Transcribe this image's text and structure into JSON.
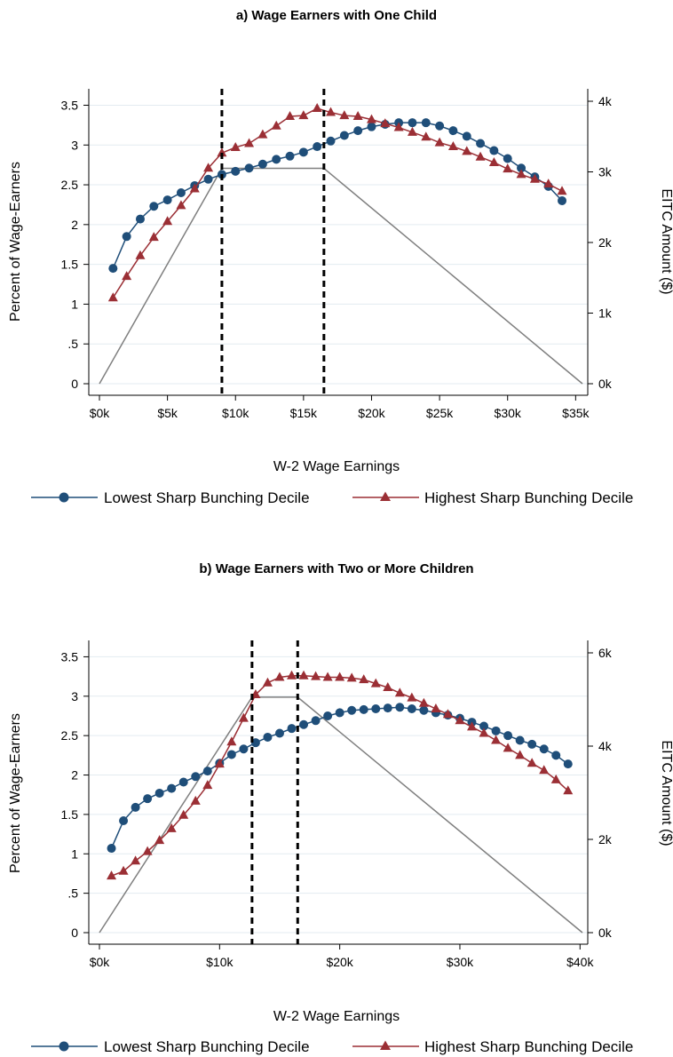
{
  "colors": {
    "low": "#1f4e79",
    "high": "#9b2f35",
    "eitc": "#7f7f7f",
    "grid": "#e3ebf0",
    "vline": "#000000"
  },
  "chart_data": [
    {
      "type": "line",
      "title": "a) Wage Earners with One Child",
      "xlabel": "W-2 Wage Earnings",
      "ylabel": "Percent of Wage-Earners",
      "y2label": "EITC Amount ($)",
      "xlim": [
        0,
        35500
      ],
      "ylim": [
        0,
        3.55
      ],
      "y2lim": [
        0,
        4000
      ],
      "xticks": [
        0,
        5000,
        10000,
        15000,
        20000,
        25000,
        30000,
        35000
      ],
      "xtick_labels": [
        "$0k",
        "$5k",
        "$10k",
        "$15k",
        "$20k",
        "$25k",
        "$30k",
        "$35k"
      ],
      "yticks": [
        0,
        0.5,
        1,
        1.5,
        2,
        2.5,
        3,
        3.5
      ],
      "ytick_labels": [
        "0",
        ".5",
        "1",
        "1.5",
        "2",
        "2.5",
        "3",
        "3.5"
      ],
      "y2ticks": [
        0,
        1000,
        2000,
        3000,
        4000
      ],
      "y2tick_labels": [
        "0k",
        "1k",
        "2k",
        "3k",
        "4k"
      ],
      "grid": true,
      "legend_position": "bottom",
      "vlines": [
        9000,
        16500
      ],
      "x": [
        1000,
        2000,
        3000,
        4000,
        5000,
        6000,
        7000,
        8000,
        9000,
        10000,
        11000,
        12000,
        13000,
        14000,
        15000,
        16000,
        17000,
        18000,
        19000,
        20000,
        21000,
        22000,
        23000,
        24000,
        25000,
        26000,
        27000,
        28000,
        29000,
        30000,
        31000,
        32000,
        33000,
        34000
      ],
      "series": [
        {
          "name": "Lowest Sharp Bunching Decile",
          "marker": "circle",
          "values": [
            1.45,
            1.85,
            2.07,
            2.23,
            2.31,
            2.4,
            2.49,
            2.57,
            2.63,
            2.67,
            2.71,
            2.76,
            2.82,
            2.86,
            2.91,
            2.98,
            3.05,
            3.12,
            3.18,
            3.23,
            3.26,
            3.28,
            3.28,
            3.28,
            3.24,
            3.18,
            3.11,
            3.02,
            2.93,
            2.83,
            2.71,
            2.6,
            2.48,
            2.3
          ]
        },
        {
          "name": "Highest Sharp Bunching Decile",
          "marker": "triangle",
          "values": [
            1.08,
            1.35,
            1.61,
            1.84,
            2.04,
            2.24,
            2.45,
            2.71,
            2.9,
            2.97,
            3.02,
            3.13,
            3.24,
            3.36,
            3.37,
            3.46,
            3.41,
            3.37,
            3.36,
            3.32,
            3.27,
            3.22,
            3.16,
            3.1,
            3.03,
            2.98,
            2.92,
            2.85,
            2.78,
            2.7,
            2.63,
            2.57,
            2.51,
            2.42
          ]
        }
      ],
      "eitc_schedule": {
        "x": [
          0,
          9000,
          16500,
          35500
        ],
        "y": [
          0,
          3050,
          3050,
          0
        ]
      }
    },
    {
      "type": "line",
      "title": "b) Wage Earners with Two or More Children",
      "xlabel": "W-2 Wage Earnings",
      "ylabel": "Percent of Wage-Earners",
      "y2label": "EITC Amount ($)",
      "xlim": [
        0,
        40200
      ],
      "ylim": [
        0,
        3.55
      ],
      "y2lim": [
        0,
        6000
      ],
      "xticks": [
        0,
        10000,
        20000,
        30000,
        40000
      ],
      "xtick_labels": [
        "$0k",
        "$10k",
        "$20k",
        "$30k",
        "$40k"
      ],
      "yticks": [
        0,
        0.5,
        1,
        1.5,
        2,
        2.5,
        3,
        3.5
      ],
      "ytick_labels": [
        "0",
        ".5",
        "1",
        "1.5",
        "2",
        "2.5",
        "3",
        "3.5"
      ],
      "y2ticks": [
        0,
        2000,
        4000,
        6000
      ],
      "y2tick_labels": [
        "0k",
        "2k",
        "4k",
        "6k"
      ],
      "grid": true,
      "legend_position": "bottom",
      "vlines": [
        12700,
        16500
      ],
      "x": [
        1000,
        2000,
        3000,
        4000,
        5000,
        6000,
        7000,
        8000,
        9000,
        10000,
        11000,
        12000,
        13000,
        14000,
        15000,
        16000,
        17000,
        18000,
        19000,
        20000,
        21000,
        22000,
        23000,
        24000,
        25000,
        26000,
        27000,
        28000,
        29000,
        30000,
        31000,
        32000,
        33000,
        34000,
        35000,
        36000,
        37000,
        38000,
        39000
      ],
      "series": [
        {
          "name": "Lowest Sharp Bunching Decile",
          "marker": "circle",
          "values": [
            1.07,
            1.42,
            1.59,
            1.7,
            1.77,
            1.83,
            1.91,
            1.98,
            2.05,
            2.15,
            2.26,
            2.33,
            2.41,
            2.48,
            2.53,
            2.59,
            2.64,
            2.69,
            2.75,
            2.79,
            2.82,
            2.83,
            2.84,
            2.85,
            2.86,
            2.84,
            2.82,
            2.79,
            2.76,
            2.72,
            2.67,
            2.62,
            2.56,
            2.5,
            2.44,
            2.39,
            2.33,
            2.25,
            2.14
          ]
        },
        {
          "name": "Highest Sharp Bunching Decile",
          "marker": "triangle",
          "values": [
            0.72,
            0.78,
            0.91,
            1.03,
            1.17,
            1.32,
            1.49,
            1.67,
            1.87,
            2.14,
            2.42,
            2.72,
            3.02,
            3.17,
            3.24,
            3.26,
            3.26,
            3.25,
            3.24,
            3.24,
            3.23,
            3.21,
            3.16,
            3.11,
            3.04,
            2.98,
            2.91,
            2.84,
            2.77,
            2.69,
            2.61,
            2.53,
            2.44,
            2.34,
            2.25,
            2.15,
            2.06,
            1.94,
            1.8
          ]
        }
      ],
      "eitc_schedule": {
        "x": [
          0,
          12700,
          16500,
          40200
        ],
        "y": [
          0,
          5050,
          5050,
          0
        ]
      }
    }
  ]
}
